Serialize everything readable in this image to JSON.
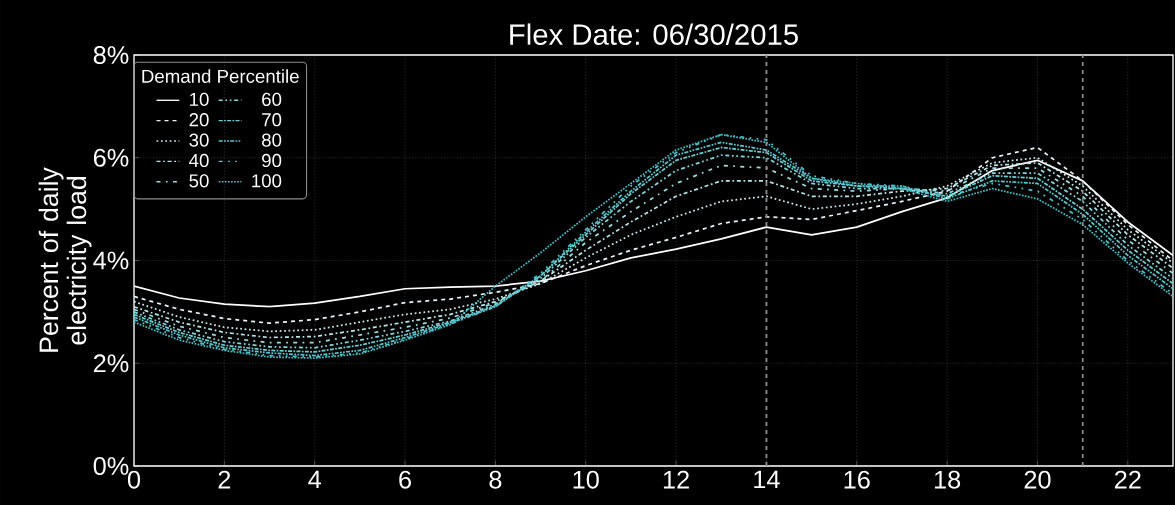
{
  "chart_data": {
    "type": "line",
    "title": "Flex Date: 06/30/2015",
    "ylabel": "Percent of daily electricity load",
    "legend_title": "Demand Percentile",
    "x": [
      0,
      1,
      2,
      3,
      4,
      5,
      6,
      7,
      8,
      9,
      10,
      11,
      12,
      13,
      14,
      15,
      16,
      17,
      18,
      19,
      20,
      21,
      22,
      23
    ],
    "xlim": [
      0,
      23
    ],
    "xticks": [
      0,
      2,
      4,
      6,
      8,
      10,
      12,
      14,
      16,
      18,
      20,
      22
    ],
    "ylim": [
      0,
      8
    ],
    "yticks": [
      {
        "value": 0,
        "label": "0%"
      },
      {
        "value": 2,
        "label": "2%"
      },
      {
        "value": 4,
        "label": "4%"
      },
      {
        "value": 6,
        "label": "6%"
      },
      {
        "value": 8,
        "label": "8%"
      }
    ],
    "grid": true,
    "legend": "top left",
    "marker": "none",
    "ref_lines": [
      {
        "axis": "x",
        "value": 14,
        "color": "#8c8c8c",
        "line_style": "dashed"
      },
      {
        "axis": "x",
        "value": 21,
        "color": "#8c8c8c",
        "line_style": "dashed"
      }
    ],
    "series": [
      {
        "name": "10",
        "color": "#ffffff",
        "line_style": "solid",
        "values": [
          3.5,
          3.27,
          3.15,
          3.1,
          3.17,
          3.3,
          3.45,
          3.48,
          3.5,
          3.6,
          3.8,
          4.05,
          4.22,
          4.42,
          4.65,
          4.5,
          4.65,
          4.95,
          5.22,
          5.75,
          5.95,
          5.55,
          4.75,
          4.1
        ]
      },
      {
        "name": "20",
        "color": "#e6f5f6",
        "line_style": "dashed",
        "values": [
          3.3,
          3.05,
          2.87,
          2.78,
          2.85,
          3.0,
          3.18,
          3.25,
          3.38,
          3.55,
          3.9,
          4.2,
          4.45,
          4.72,
          4.85,
          4.8,
          4.97,
          5.15,
          5.35,
          6.0,
          6.2,
          5.55,
          4.7,
          4.0
        ]
      },
      {
        "name": "30",
        "color": "#cdeef0",
        "line_style": "dotted",
        "values": [
          3.2,
          2.9,
          2.7,
          2.62,
          2.65,
          2.8,
          2.95,
          3.05,
          3.25,
          3.55,
          4.05,
          4.5,
          4.85,
          5.15,
          5.25,
          5.0,
          5.1,
          5.25,
          5.45,
          5.9,
          6.0,
          5.45,
          4.6,
          3.95
        ]
      },
      {
        "name": "40",
        "color": "#b4e6e9",
        "line_style": "dashdotted",
        "values": [
          3.1,
          2.8,
          2.6,
          2.5,
          2.52,
          2.65,
          2.8,
          2.95,
          3.2,
          3.6,
          4.2,
          4.75,
          5.25,
          5.55,
          5.55,
          5.25,
          5.25,
          5.35,
          5.4,
          5.85,
          5.9,
          5.35,
          4.5,
          3.85
        ]
      },
      {
        "name": "50",
        "color": "#9bdee2",
        "line_style": "loosely dashdotted",
        "values": [
          3.05,
          2.72,
          2.5,
          2.4,
          2.4,
          2.55,
          2.7,
          2.88,
          3.18,
          3.6,
          4.35,
          4.95,
          5.5,
          5.85,
          5.8,
          5.4,
          5.35,
          5.4,
          5.35,
          5.8,
          5.8,
          5.25,
          4.4,
          3.75
        ]
      },
      {
        "name": "60",
        "color": "#82d7dc",
        "line_style": "dashdotdotted",
        "values": [
          3.0,
          2.65,
          2.42,
          2.32,
          2.3,
          2.45,
          2.62,
          2.82,
          3.15,
          3.65,
          4.45,
          5.15,
          5.75,
          6.05,
          6.0,
          5.5,
          5.4,
          5.4,
          5.3,
          5.7,
          5.7,
          5.15,
          4.3,
          3.65
        ]
      },
      {
        "name": "70",
        "color": "#6acfd5",
        "line_style": "densely dashdotted",
        "values": [
          2.95,
          2.6,
          2.35,
          2.25,
          2.22,
          2.35,
          2.55,
          2.8,
          3.12,
          3.7,
          4.5,
          5.3,
          5.95,
          6.2,
          6.1,
          5.55,
          5.45,
          5.4,
          5.25,
          5.65,
          5.6,
          5.0,
          4.2,
          3.55
        ]
      },
      {
        "name": "80",
        "color": "#58c8cf",
        "line_style": "densely dashdotdotted",
        "values": [
          2.9,
          2.55,
          2.3,
          2.2,
          2.15,
          2.25,
          2.5,
          2.78,
          3.1,
          3.7,
          4.55,
          5.35,
          6.05,
          6.3,
          6.15,
          5.6,
          5.45,
          5.45,
          5.2,
          5.55,
          5.5,
          4.9,
          4.1,
          3.45
        ]
      },
      {
        "name": "90",
        "color": "#4cc3cb",
        "line_style": "loosely dashdotdotted",
        "values": [
          2.85,
          2.5,
          2.27,
          2.15,
          2.12,
          2.2,
          2.47,
          2.76,
          3.1,
          3.75,
          4.6,
          5.45,
          6.1,
          6.45,
          6.35,
          5.65,
          5.5,
          5.45,
          5.25,
          5.5,
          5.35,
          4.8,
          4.0,
          3.35
        ]
      },
      {
        "name": "100",
        "color": "#40bec8",
        "line_style": "densely dotted",
        "values": [
          2.8,
          2.45,
          2.25,
          2.12,
          2.1,
          2.18,
          2.45,
          2.75,
          3.5,
          4.15,
          4.85,
          5.5,
          6.15,
          6.45,
          6.3,
          5.6,
          5.5,
          5.4,
          5.15,
          5.4,
          5.2,
          4.7,
          3.95,
          3.3
        ]
      }
    ]
  }
}
